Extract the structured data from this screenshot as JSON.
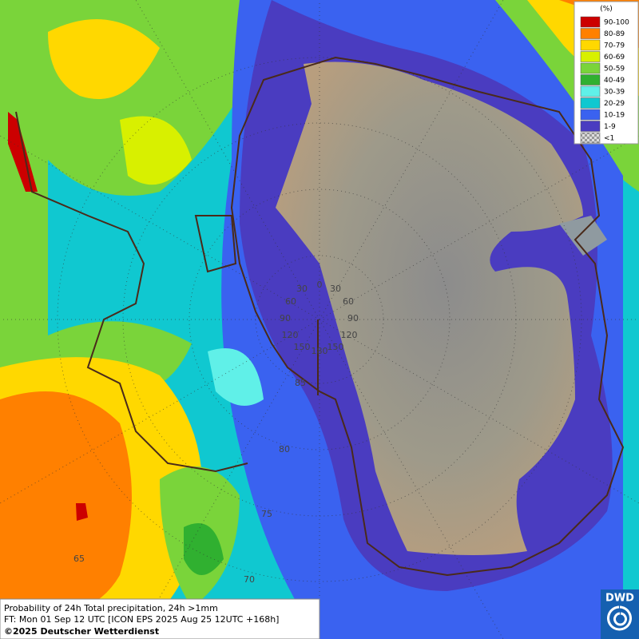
{
  "legend": {
    "title": "(%)",
    "entries": [
      {
        "label": "90-100",
        "color": "#cc0000"
      },
      {
        "label": "80-89",
        "color": "#ff8000"
      },
      {
        "label": "70-79",
        "color": "#ffd800"
      },
      {
        "label": "60-69",
        "color": "#d8f000"
      },
      {
        "label": "50-59",
        "color": "#7ad43a"
      },
      {
        "label": "40-49",
        "color": "#30b030"
      },
      {
        "label": "30-39",
        "color": "#60f0e8"
      },
      {
        "label": "20-29",
        "color": "#10c8d0"
      },
      {
        "label": "10-19",
        "color": "#3a62f0"
      },
      {
        "label": "1-9",
        "color": "#4a3cc0"
      },
      {
        "label": "<1",
        "color": "checker"
      }
    ]
  },
  "map": {
    "longitude_labels": [
      "0",
      "30",
      "60",
      "90",
      "120",
      "150",
      "180"
    ],
    "latitude_labels": [
      "85",
      "80",
      "75",
      "70",
      "65"
    ]
  },
  "footer": {
    "line1": "Probability of 24h Total precipitation, 24h >1mm",
    "line2": "FT: Mon 01 Sep 12 UTC [ICON EPS 2025 Aug 25 12UTC +168h]",
    "copyright": "©2025 Deutscher Wetterdienst"
  },
  "logo": {
    "text": "DWD"
  }
}
